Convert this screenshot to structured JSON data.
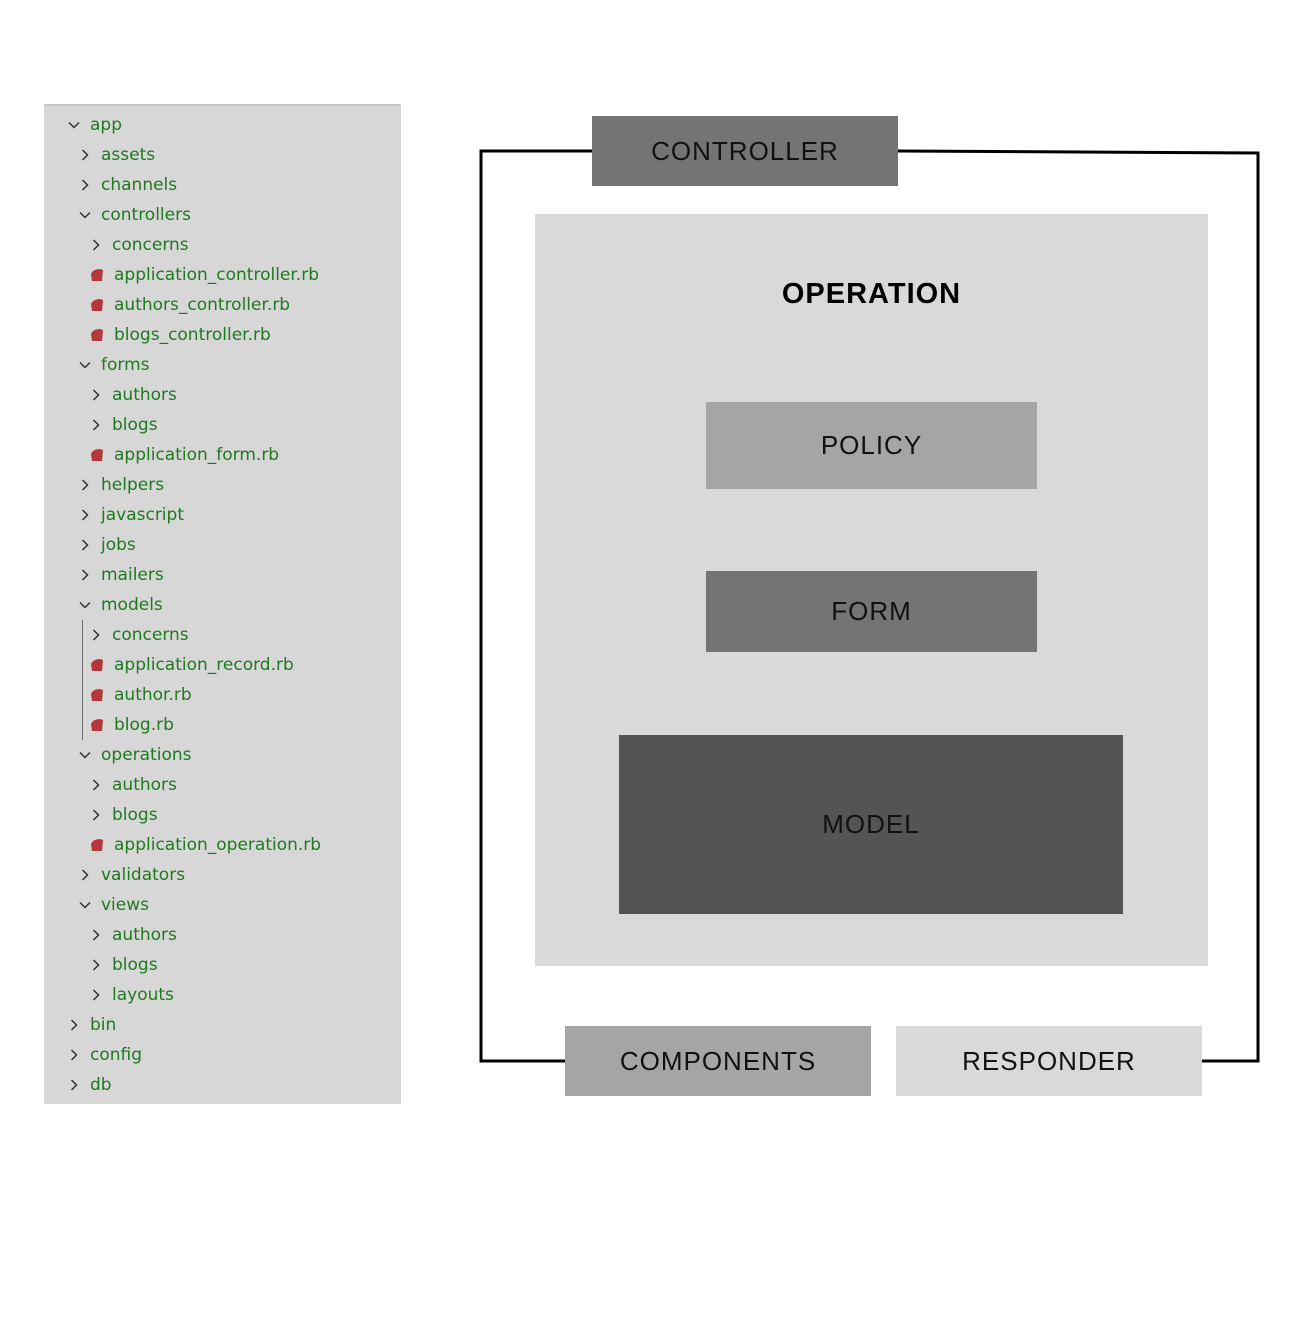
{
  "file_tree": {
    "items": [
      {
        "label": "app",
        "level": 0,
        "kind": "folder-open"
      },
      {
        "label": "assets",
        "level": 1,
        "kind": "folder"
      },
      {
        "label": "channels",
        "level": 1,
        "kind": "folder"
      },
      {
        "label": "controllers",
        "level": 1,
        "kind": "folder-open"
      },
      {
        "label": "concerns",
        "level": 2,
        "kind": "folder"
      },
      {
        "label": "application_controller.rb",
        "level": 2,
        "kind": "ruby-file"
      },
      {
        "label": "authors_controller.rb",
        "level": 2,
        "kind": "ruby-file"
      },
      {
        "label": "blogs_controller.rb",
        "level": 2,
        "kind": "ruby-file"
      },
      {
        "label": "forms",
        "level": 1,
        "kind": "folder-open"
      },
      {
        "label": "authors",
        "level": 2,
        "kind": "folder"
      },
      {
        "label": "blogs",
        "level": 2,
        "kind": "folder"
      },
      {
        "label": "application_form.rb",
        "level": 2,
        "kind": "ruby-file"
      },
      {
        "label": "helpers",
        "level": 1,
        "kind": "folder"
      },
      {
        "label": "javascript",
        "level": 1,
        "kind": "folder"
      },
      {
        "label": "jobs",
        "level": 1,
        "kind": "folder"
      },
      {
        "label": "mailers",
        "level": 1,
        "kind": "folder"
      },
      {
        "label": "models",
        "level": 1,
        "kind": "folder-open"
      },
      {
        "label": "concerns",
        "level": 2,
        "kind": "folder"
      },
      {
        "label": "application_record.rb",
        "level": 2,
        "kind": "ruby-file"
      },
      {
        "label": "author.rb",
        "level": 2,
        "kind": "ruby-file"
      },
      {
        "label": "blog.rb",
        "level": 2,
        "kind": "ruby-file"
      },
      {
        "label": "operations",
        "level": 1,
        "kind": "folder-open"
      },
      {
        "label": "authors",
        "level": 2,
        "kind": "folder"
      },
      {
        "label": "blogs",
        "level": 2,
        "kind": "folder"
      },
      {
        "label": "application_operation.rb",
        "level": 2,
        "kind": "ruby-file"
      },
      {
        "label": "validators",
        "level": 1,
        "kind": "folder"
      },
      {
        "label": "views",
        "level": 1,
        "kind": "folder-open"
      },
      {
        "label": "authors",
        "level": 2,
        "kind": "folder"
      },
      {
        "label": "blogs",
        "level": 2,
        "kind": "folder"
      },
      {
        "label": "layouts",
        "level": 2,
        "kind": "folder"
      },
      {
        "label": "bin",
        "level": 0,
        "kind": "folder"
      },
      {
        "label": "config",
        "level": 0,
        "kind": "folder"
      },
      {
        "label": "db",
        "level": 0,
        "kind": "folder"
      }
    ],
    "colors": {
      "text": "#1d7a1d",
      "ruby_icon": "#b3373b",
      "chevron": "#333333",
      "background": "#d7d7d7"
    }
  },
  "diagram": {
    "controller": {
      "label": "CONTROLLER",
      "color": "#747474"
    },
    "operation": {
      "title": "OPERATION",
      "color": "#d9d9d9"
    },
    "policy": {
      "label": "POLICY",
      "color": "#a5a5a5"
    },
    "form": {
      "label": "FORM",
      "color": "#747474"
    },
    "model": {
      "label": "MODEL",
      "color": "#545454"
    },
    "components": {
      "label": "COMPONENTS",
      "color": "#a5a5a5"
    },
    "responder": {
      "label": "RESPONDER",
      "color": "#d9d9d9"
    }
  }
}
